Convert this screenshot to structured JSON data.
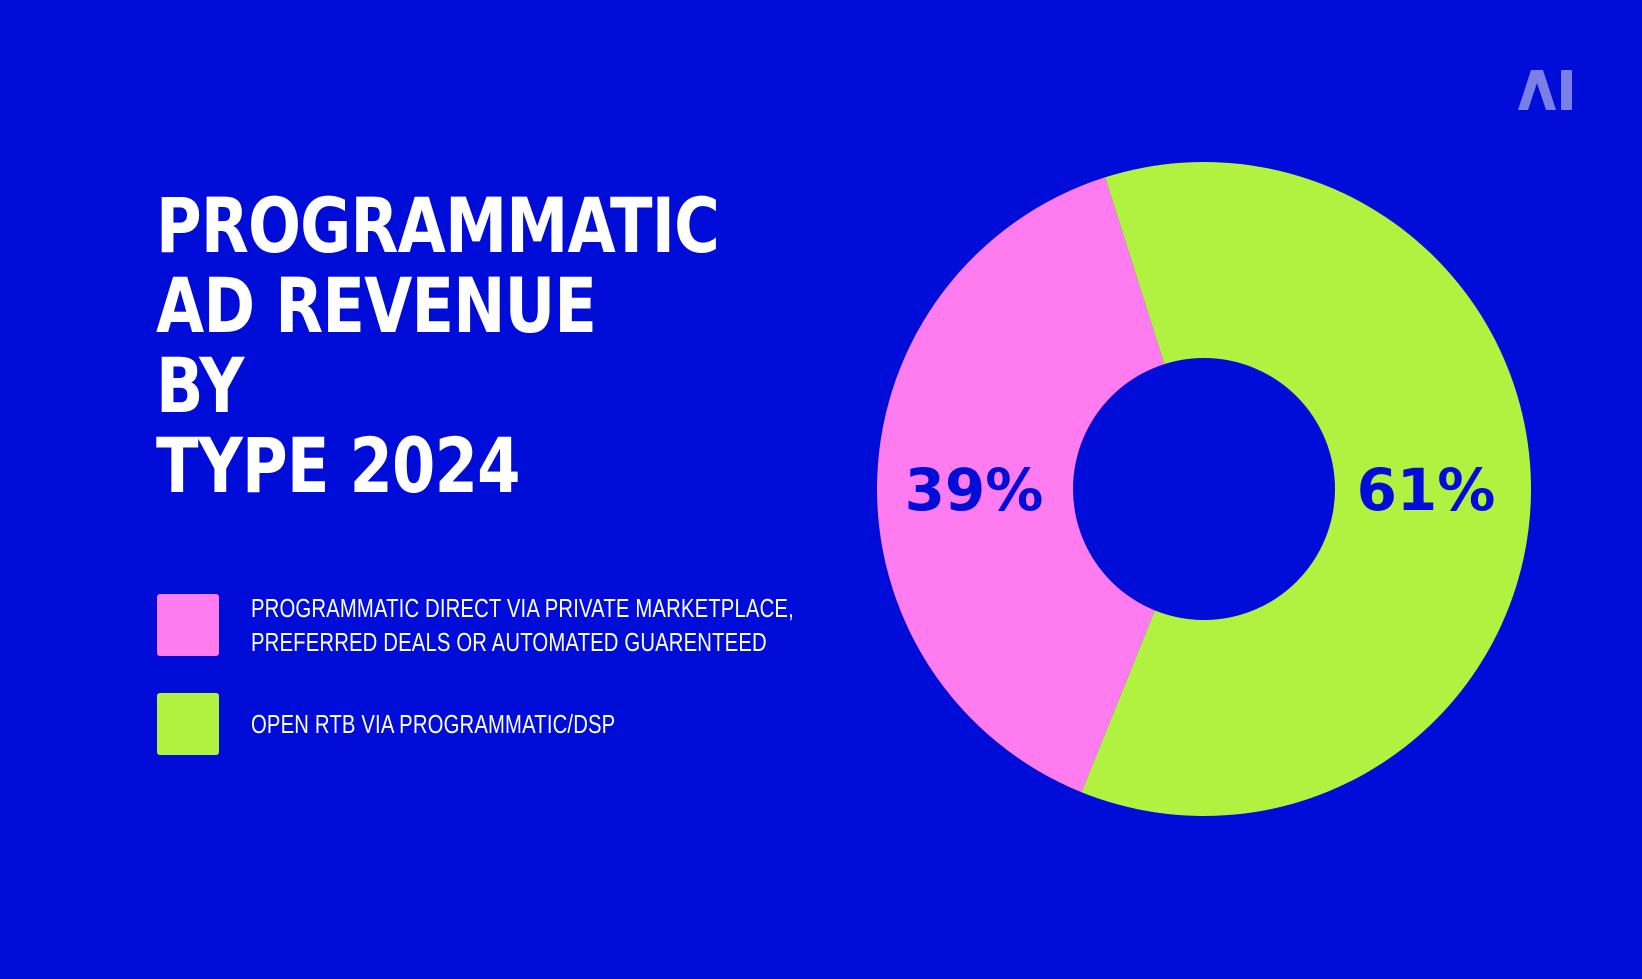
{
  "logo": {
    "text": "AI",
    "color": "#7b7fe8"
  },
  "title": {
    "lines": [
      "PROGRAMMATIC",
      "AD REVENUE BY",
      "TYPE 2024"
    ]
  },
  "legend": [
    {
      "lines": [
        "PROGRAMMATIC DIRECT VIA PRIVATE MARKETPLACE,",
        "PREFERRED DEALS OR AUTOMATED GUARENTEED"
      ],
      "color": "#ff7cf0"
    },
    {
      "lines": [
        "OPEN RTB VIA PROGRAMMATIC/DSP"
      ],
      "color": "#b1f240"
    }
  ],
  "colors": {
    "background": "#000cd8",
    "text": "#ffffff",
    "label": "#000cd8"
  },
  "chart_data": {
    "type": "pie",
    "subtype": "donut",
    "title": "PROGRAMMATIC AD REVENUE BY TYPE 2024",
    "categories": [
      "PROGRAMMATIC DIRECT VIA PRIVATE MARKETPLACE, PREFERRED DEALS OR AUTOMATED GUARENTEED",
      "OPEN RTB VIA PROGRAMMATIC/DSP"
    ],
    "values": [
      39,
      61
    ],
    "unit": "%",
    "data_labels": [
      "39%",
      "61%"
    ],
    "colors": [
      "#ff7cf0",
      "#b1f240"
    ],
    "legend_position": "left"
  }
}
